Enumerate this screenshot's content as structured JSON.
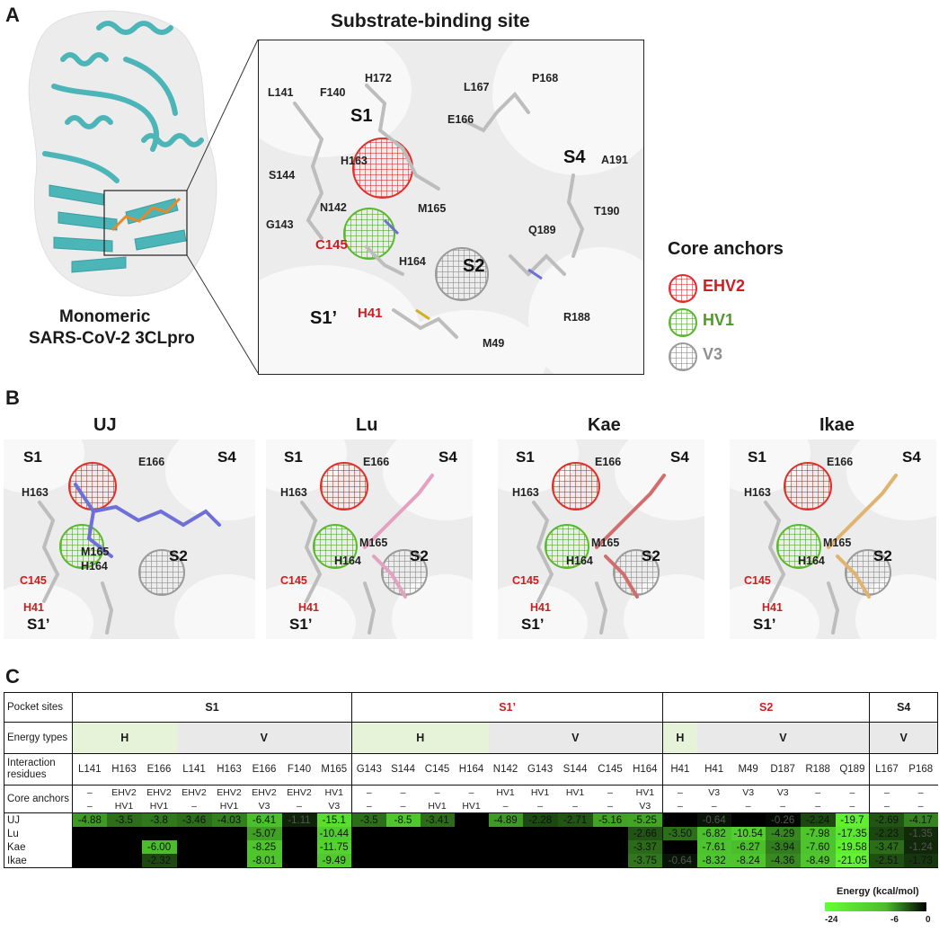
{
  "panel_letters": {
    "a": "A",
    "b": "B",
    "c": "C"
  },
  "panel_a": {
    "protein_label_line1": "Monomeric",
    "protein_label_line2": "SARS-CoV-2 3CLpro",
    "zoom_title": "Substrate-binding site",
    "residues": [
      "L141",
      "F140",
      "H172",
      "L167",
      "P168",
      "E166",
      "H163",
      "S144",
      "N142",
      "M165",
      "G143",
      "H164",
      "Q189",
      "T190",
      "A191",
      "R188",
      "M49"
    ],
    "red_residues": [
      "C145",
      "H41"
    ],
    "sites": [
      "S1",
      "S4",
      "S2",
      "S1’"
    ],
    "legend": {
      "title": "Core anchors",
      "items": [
        {
          "label": "EHV2",
          "color": "#d01c1f"
        },
        {
          "label": "HV1",
          "color": "#4f9a2a"
        },
        {
          "label": "V3",
          "color": "#8f8f8f"
        }
      ]
    }
  },
  "panel_b": {
    "ligands": [
      {
        "name": "UJ",
        "color": "#6f6fd8"
      },
      {
        "name": "Lu",
        "color": "#e3a2c2"
      },
      {
        "name": "Kae",
        "color": "#d26d6d"
      },
      {
        "name": "Ikae",
        "color": "#e0b36f"
      }
    ],
    "labels": {
      "s1": "S1",
      "s4": "S4",
      "s2": "S2",
      "s1p": "S1’",
      "e166": "E166",
      "h163": "H163",
      "m165": "M165",
      "h164": "H164",
      "c145": "C145",
      "h41": "H41"
    }
  },
  "panel_c": {
    "header_pocket": "Pocket sites",
    "header_energy": "Energy types",
    "header_residues": "Interaction residues",
    "header_anchors": "Core anchors",
    "pockets": [
      {
        "label": "S1",
        "red": false
      },
      {
        "label": "S1’",
        "red": true
      },
      {
        "label": "S2",
        "red": true
      },
      {
        "label": "S4",
        "red": false
      }
    ],
    "energy_types": [
      "H",
      "V",
      "H",
      "V",
      "H",
      "V",
      "V"
    ],
    "residues": [
      "L141",
      "H163",
      "E166",
      "L141",
      "H163",
      "E166",
      "F140",
      "M165",
      "G143",
      "S144",
      "C145",
      "H164",
      "N142",
      "G143",
      "S144",
      "C145",
      "H164",
      "H41",
      "H41",
      "M49",
      "D187",
      "R188",
      "Q189",
      "L167",
      "P168"
    ],
    "red_residue_indices": [
      10,
      15,
      17,
      18
    ],
    "anchors_line1": [
      "–",
      "EHV2",
      "EHV2",
      "EHV2",
      "EHV2",
      "EHV2",
      "EHV2",
      "HV1",
      "–",
      "–",
      "–",
      "–",
      "HV1",
      "HV1",
      "HV1",
      "–",
      "HV1",
      "–",
      "V3",
      "V3",
      "V3",
      "–",
      "–",
      "–",
      "–"
    ],
    "anchors_line2": [
      "–",
      "HV1",
      "HV1",
      "–",
      "HV1",
      "V3",
      "–",
      "V3",
      "–",
      "–",
      "HV1",
      "HV1",
      "–",
      "–",
      "–",
      "–",
      "V3",
      "–",
      "–",
      "–",
      "–",
      "–",
      "–",
      "–",
      "–"
    ],
    "rows": [
      {
        "name": "UJ",
        "values": [
          -4.88,
          -3.5,
          -3.8,
          -3.46,
          -4.03,
          -6.41,
          -1.11,
          -15.1,
          -3.5,
          -8.5,
          -3.41,
          null,
          -4.89,
          -2.28,
          -2.71,
          -5.16,
          -5.25,
          null,
          -0.64,
          null,
          -0.26,
          -2.24,
          -19.7,
          -2.69,
          -4.17
        ],
        "text": [
          "-4.88",
          "-3.5",
          "-3.8",
          "-3.46",
          "-4.03",
          "-6.41",
          "-1.11",
          "-15.1",
          "-3.5",
          "-8.5",
          "-3.41",
          "",
          "-4.89",
          "-2.28",
          "-2.71",
          "-5.16",
          "-5.25",
          "",
          "-0.64",
          "",
          "-0.26",
          "-2.24",
          "-19.7",
          "-2.69",
          "-4.17"
        ]
      },
      {
        "name": "Lu",
        "values": [
          null,
          null,
          null,
          null,
          null,
          -5.07,
          null,
          -10.44,
          null,
          null,
          null,
          null,
          null,
          null,
          null,
          null,
          -2.66,
          -3.5,
          -6.82,
          -10.54,
          -4.29,
          -7.98,
          -17.35,
          -2.23,
          -1.35
        ],
        "text": [
          "",
          "",
          "",
          "",
          "",
          "-5.07",
          "",
          "-10.44",
          "",
          "",
          "",
          "",
          "",
          "",
          "",
          "",
          "-2.66",
          "-3.50",
          "-6.82",
          "-10.54",
          "-4.29",
          "-7.98",
          "-17.35",
          "-2.23",
          "-1.35"
        ]
      },
      {
        "name": "Kae",
        "values": [
          null,
          null,
          -6.0,
          null,
          null,
          -8.25,
          null,
          -11.75,
          null,
          null,
          null,
          null,
          null,
          null,
          null,
          null,
          -3.37,
          null,
          -7.61,
          -6.27,
          -3.94,
          -7.6,
          -19.58,
          -3.47,
          -1.24
        ],
        "text": [
          "",
          "",
          "-6.00",
          "",
          "",
          "-8.25",
          "",
          "-11.75",
          "",
          "",
          "",
          "",
          "",
          "",
          "",
          "",
          "-3.37",
          "",
          "-7.61",
          "-6.27",
          "-3.94",
          "-7.60",
          "-19.58",
          "-3.47",
          "-1.24"
        ]
      },
      {
        "name": "Ikae",
        "values": [
          null,
          null,
          -2.32,
          null,
          null,
          -8.01,
          null,
          -9.49,
          null,
          null,
          null,
          null,
          null,
          null,
          null,
          null,
          -3.75,
          -0.64,
          -8.32,
          -8.24,
          -4.36,
          -8.49,
          -21.05,
          -2.51,
          -1.73
        ],
        "text": [
          "",
          "",
          "-2.32",
          "",
          "",
          "-8.01",
          "",
          "-9.49",
          "",
          "",
          "",
          "",
          "",
          "",
          "",
          "",
          "-3.75",
          "-0.64",
          "-8.32",
          "-8.24",
          "-4.36",
          "-8.49",
          "-21.05",
          "-2.51",
          "-1.73"
        ]
      }
    ],
    "legend_title": "Energy (kcal/mol)",
    "legend_ticks": [
      "-24",
      "-6",
      "0"
    ],
    "colors": {
      "strong": "#66ff33",
      "mid": "#4bbd2c",
      "zero": "#000000"
    }
  }
}
